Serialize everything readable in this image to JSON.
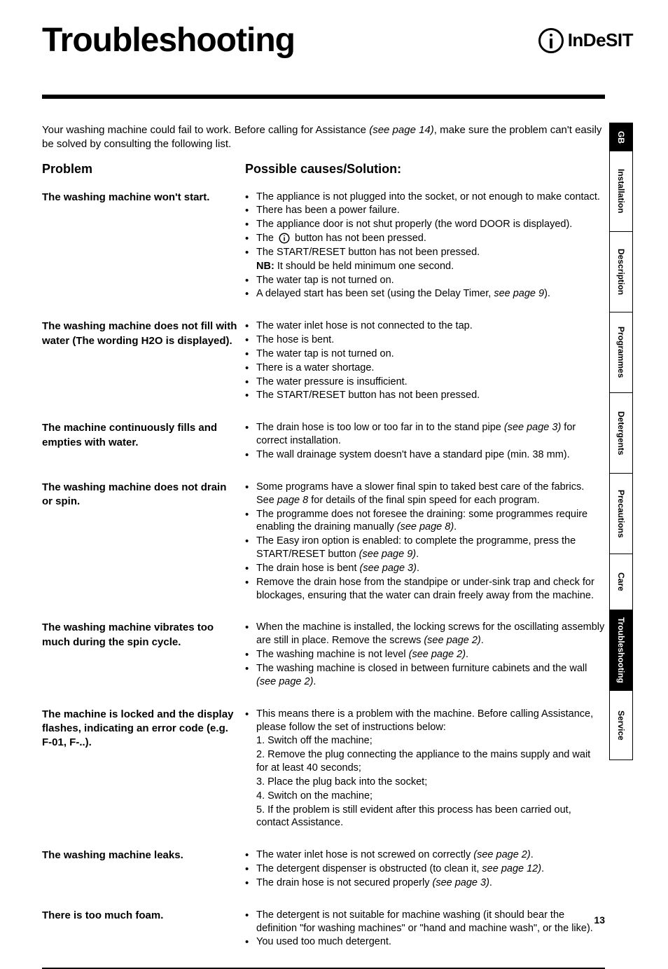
{
  "meta": {
    "page_number": "13",
    "brand_name": "InDeSIT"
  },
  "header": {
    "title": "Troubleshooting"
  },
  "intro": {
    "prefix": "Your washing machine could fail to work. Before calling for Assistance ",
    "italic_ref": "(see page 14)",
    "suffix": ", make sure the problem can't easily be solved by consulting the following list."
  },
  "column_headers": {
    "problem": "Problem",
    "solution": "Possible causes/Solution:"
  },
  "sections": [
    {
      "problem": "The washing machine won't start.",
      "items": [
        {
          "text": "The appliance is not plugged into the socket, or not enough to make contact."
        },
        {
          "text": "There has been a power failure."
        },
        {
          "text": "The appliance door is not shut properly (the word DOOR is displayed)."
        },
        {
          "prefix": "The ",
          "power_icon": true,
          "suffix": " button has not been pressed."
        },
        {
          "text": "The START/RESET button has not been pressed."
        },
        {
          "text": "NB: It should be held minimum one second.",
          "no_bullet": true,
          "bold_prefix": "NB:"
        },
        {
          "text": "The water tap is not turned on."
        },
        {
          "prefix": "A delayed start has been set (using the Delay Timer, ",
          "italic": "see page 9",
          "suffix": ")."
        }
      ]
    },
    {
      "problem": "The washing machine does not fill with water (The wording H2O is displayed).",
      "items": [
        {
          "text": "The water inlet hose is not connected to the tap."
        },
        {
          "text": "The hose is bent."
        },
        {
          "text": "The water tap is not turned on."
        },
        {
          "text": "There is a water shortage."
        },
        {
          "text": "The water pressure is insufficient."
        },
        {
          "text": "The START/RESET button has not been pressed."
        }
      ]
    },
    {
      "problem": "The machine continuously fills and empties with water.",
      "items": [
        {
          "prefix": "The drain hose is too low or too far in to the stand pipe ",
          "italic": "(see page 3)",
          "suffix": " for correct installation."
        },
        {
          "text": "The wall drainage system doesn't have a standard pipe (min. 38 mm)."
        }
      ]
    },
    {
      "problem": "The washing machine does not drain or spin.",
      "items": [
        {
          "prefix": "Some programs have a slower final spin to taked best care of the fabrics. See ",
          "italic": "page 8",
          "suffix": " for details of the final spin speed for each program."
        },
        {
          "prefix": "The programme does not foresee the draining: some programmes require enabling the draining manually ",
          "italic": "(see page 8)",
          "suffix": "."
        },
        {
          "prefix": "The Easy iron option is enabled: to complete the programme, press the START/RESET button ",
          "italic": "(see page 9)",
          "suffix": "."
        },
        {
          "prefix": "The drain hose is bent ",
          "italic": "(see page 3)",
          "suffix": "."
        },
        {
          "text": "Remove the drain hose from the standpipe or under-sink trap and check for blockages, ensuring that the water can drain freely away from the machine."
        }
      ]
    },
    {
      "problem": "The washing machine vibrates too much during the spin cycle.",
      "items": [
        {
          "prefix": "When the machine is installed, the locking screws for the oscillating assembly are still in place. Remove the screws ",
          "italic": "(see page 2)",
          "suffix": "."
        },
        {
          "prefix": "The washing machine is not level ",
          "italic": "(see page 2)",
          "suffix": "."
        },
        {
          "prefix": "The washing machine is closed in between furniture cabinets and the wall ",
          "italic": "(see page 2)",
          "suffix": "."
        }
      ]
    },
    {
      "problem": "The machine is locked and the display flashes, indicating an error code (e.g. F-01, F-..).",
      "items": [
        {
          "text": "This means there is a problem with the machine. Before calling Assistance, please follow the set of instructions below:"
        },
        {
          "text": "1. Switch off the machine;",
          "no_bullet": true
        },
        {
          "text": "2. Remove the plug connecting the appliance to the mains supply and wait for at least 40 seconds;",
          "no_bullet": true
        },
        {
          "text": "3. Place the plug back into the socket;",
          "no_bullet": true
        },
        {
          "text": "4. Switch on the machine;",
          "no_bullet": true
        },
        {
          "text": "5. If the problem is still evident after this process has been carried out, contact Assistance.",
          "no_bullet": true
        }
      ]
    },
    {
      "problem": "The washing machine leaks.",
      "items": [
        {
          "prefix": "The water inlet hose is not screwed on correctly ",
          "italic": "(see page 2)",
          "suffix": "."
        },
        {
          "prefix": "The detergent dispenser is obstructed (to clean it, ",
          "italic": "see page 12)",
          "suffix": "."
        },
        {
          "prefix": "The drain hose is not secured properly ",
          "italic": "(see page 3)",
          "suffix": "."
        }
      ]
    },
    {
      "problem": "There is too much foam.",
      "items": [
        {
          "text": "The detergent is not suitable for machine washing (it should bear the definition \"for washing machines\" or \"hand and machine wash\", or the like)."
        },
        {
          "text": "You used too much detergent."
        }
      ]
    }
  ],
  "tabs": [
    {
      "label": "GB",
      "type": "lang"
    },
    {
      "label": "Installation",
      "type": "nav"
    },
    {
      "label": "Description",
      "type": "nav"
    },
    {
      "label": "Programmes",
      "type": "nav"
    },
    {
      "label": "Detergents",
      "type": "nav"
    },
    {
      "label": "Precautions",
      "type": "nav"
    },
    {
      "label": "Care",
      "type": "nav care"
    },
    {
      "label": "Troubleshooting",
      "type": "nav active"
    },
    {
      "label": "Service",
      "type": "nav service last"
    }
  ]
}
